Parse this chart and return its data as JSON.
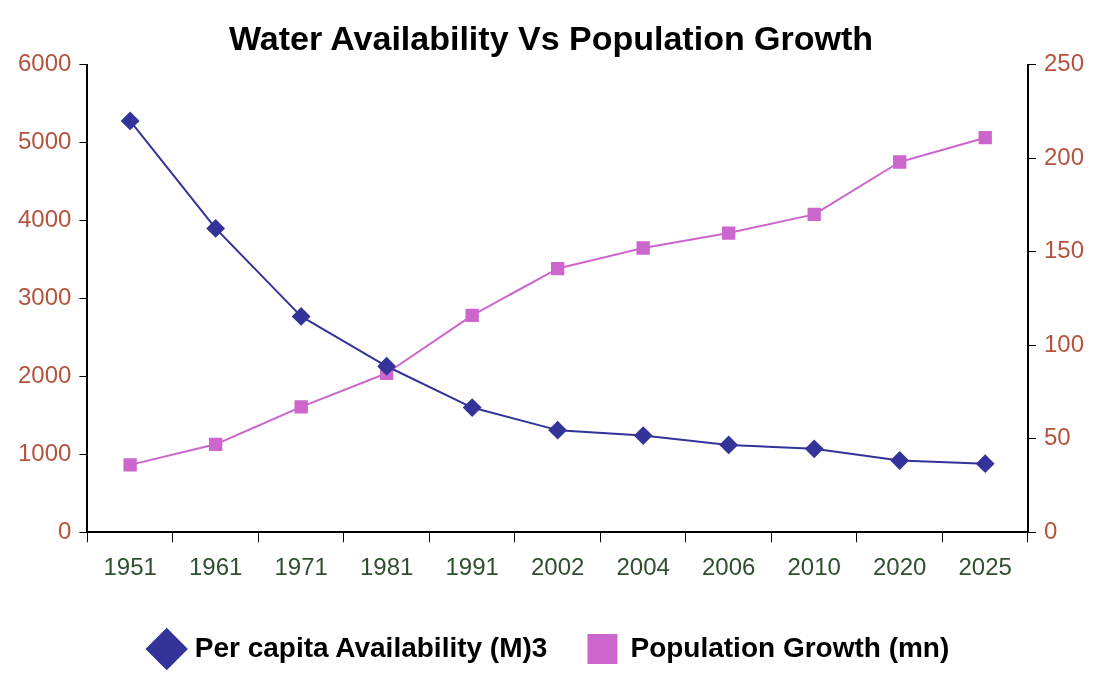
{
  "chart_data": {
    "type": "line",
    "title": "Water Availability Vs Population Growth",
    "categories": [
      "1951",
      "1961",
      "1971",
      "1981",
      "1991",
      "2002",
      "2004",
      "2006",
      "2010",
      "2020",
      "2025"
    ],
    "series": [
      {
        "name": "Per capita Availability (M)3",
        "color": "#333399",
        "marker": "diamond",
        "values": [
          5280,
          3900,
          2770,
          2130,
          1600,
          1310,
          1240,
          1120,
          1070,
          920,
          880
        ]
      },
      {
        "name": "Population Growth (mn)",
        "color": "#cc66cc",
        "marker": "square",
        "axis": "y2",
        "values": [
          36,
          47,
          67,
          85,
          116,
          141,
          152,
          160,
          170,
          198,
          211
        ]
      }
    ],
    "ylim": [
      0,
      6000
    ],
    "yticks": [
      0,
      1000,
      2000,
      3000,
      4000,
      5000,
      6000
    ],
    "y2lim": [
      0,
      250
    ],
    "y2ticks": [
      0,
      50,
      100,
      150,
      200,
      250
    ],
    "grid": false,
    "legend": "bottom",
    "line_style": "solid"
  }
}
